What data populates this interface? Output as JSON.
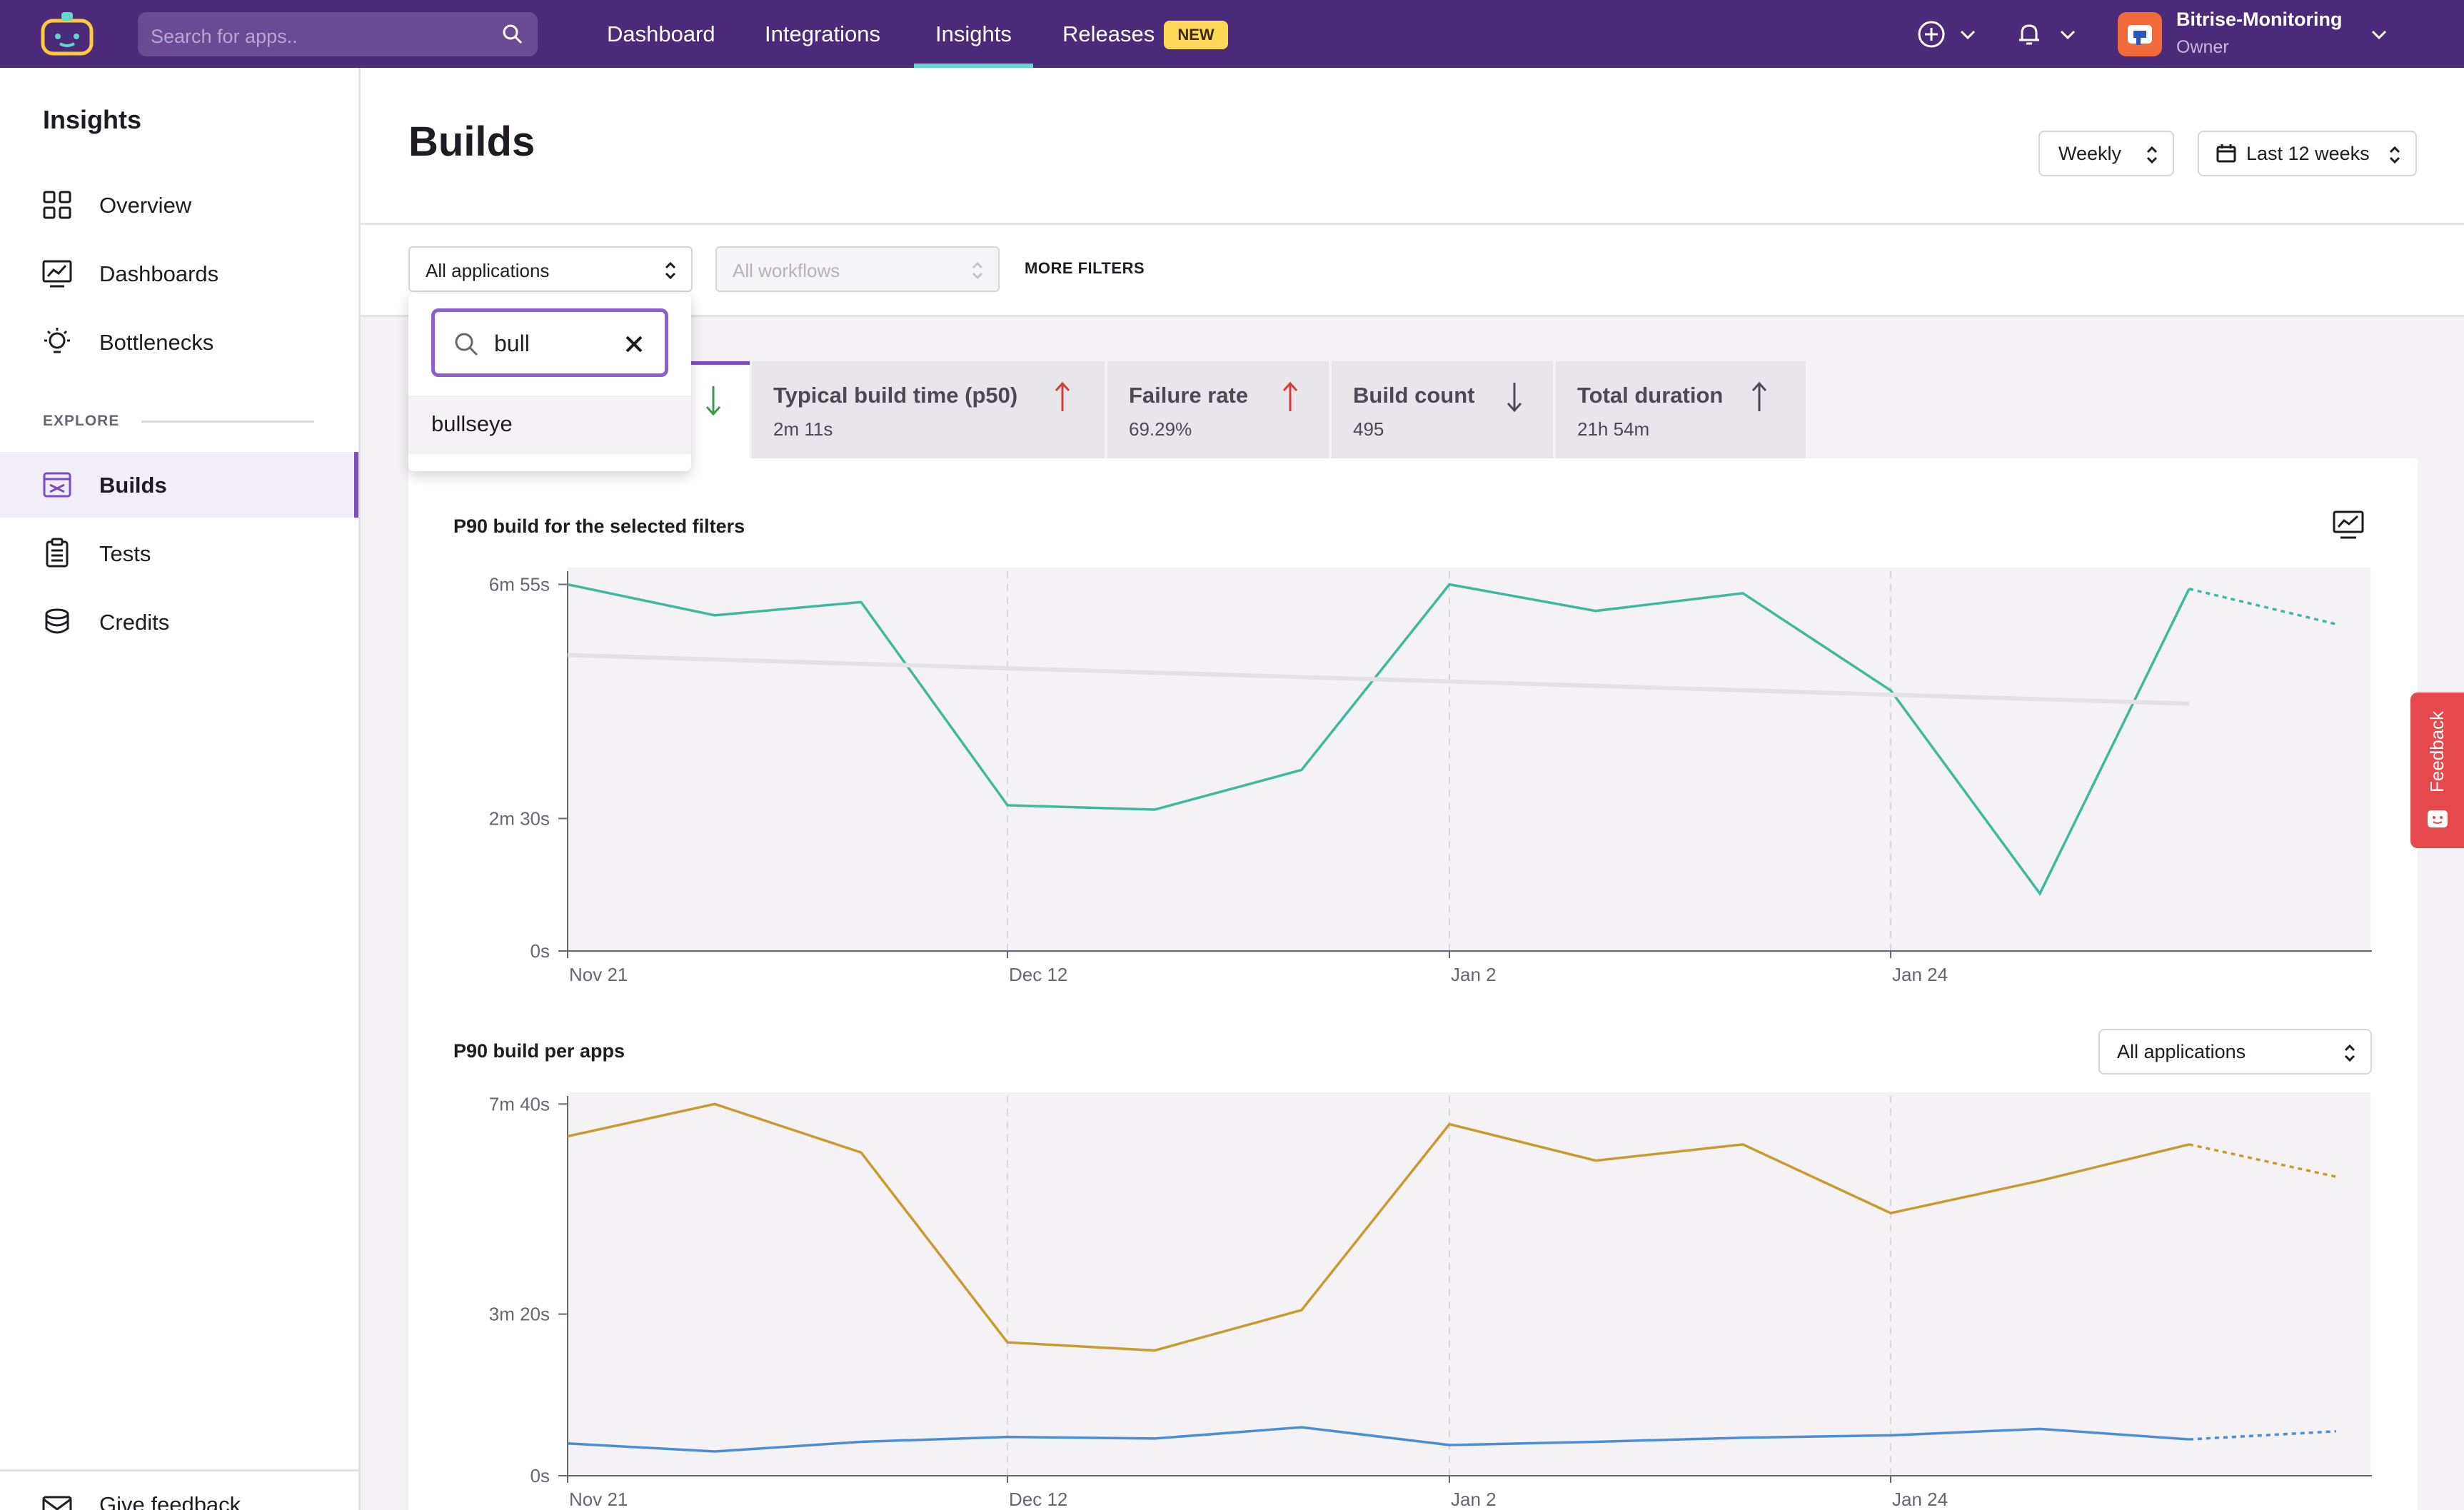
{
  "topbar": {
    "search_placeholder": "Search for apps..",
    "nav": [
      "Dashboard",
      "Integrations",
      "Insights",
      "Releases"
    ],
    "active_nav": "Insights",
    "new_badge": "NEW",
    "account_name": "Bitrise-Monitoring",
    "account_role": "Owner"
  },
  "sidebar": {
    "title": "Insights",
    "items": [
      "Overview",
      "Dashboards",
      "Bottlenecks"
    ],
    "explore_label": "EXPLORE",
    "explore_items": [
      "Builds",
      "Tests",
      "Credits"
    ],
    "active_item": "Builds",
    "feedback": "Give feedback"
  },
  "header": {
    "title": "Builds",
    "period": "Weekly",
    "range": "Last 12 weeks"
  },
  "filters": {
    "applications": "All applications",
    "workflows": "All workflows",
    "more": "MORE FILTERS"
  },
  "search_popover": {
    "query": "bull",
    "results": [
      "bullseye"
    ]
  },
  "metrics": [
    {
      "name": "Typical build time (p50)",
      "value": "2m 11s",
      "trend": "up"
    },
    {
      "name": "Failure rate",
      "value": "69.29%",
      "trend": "up"
    },
    {
      "name": "Build count",
      "value": "495",
      "trend": "down"
    },
    {
      "name": "Total duration",
      "value": "21h 54m",
      "trend": "up"
    }
  ],
  "colors": {
    "brand": "#4b2a7a",
    "accent": "#7b4fc3",
    "teal": "#3fb8a0",
    "gold": "#c99a2e",
    "blue": "#4a8fd6",
    "trend_up": "#d93a3a",
    "trend_down": "#3a9a4a"
  },
  "charts": {
    "main_title": "P90 build for the selected filters",
    "apps_title": "P90 build per apps",
    "apps_select": "All applications"
  },
  "chart_data": [
    {
      "type": "line",
      "title": "P90 build for the selected filters",
      "x": [
        0,
        1,
        2,
        3,
        4,
        5,
        6,
        7,
        8,
        9,
        10,
        11,
        12
      ],
      "x_ticks": [
        {
          "at": 0,
          "label": "Nov 21"
        },
        {
          "at": 3,
          "label": "Dec 12"
        },
        {
          "at": 6,
          "label": "Jan 2"
        },
        {
          "at": 9,
          "label": "Jan 24"
        }
      ],
      "y_ticks": [
        {
          "at": 0,
          "label": "0s"
        },
        {
          "at": 150,
          "label": "2m 30s"
        },
        {
          "at": 415,
          "label": "6m 55s"
        }
      ],
      "ylim": [
        0,
        430
      ],
      "series": [
        {
          "values": [
            415,
            380,
            395,
            165,
            160,
            205,
            415,
            385,
            405,
            295,
            65,
            410,
            370
          ],
          "color": "#3fb8a0",
          "dashed_from": 11
        },
        {
          "values": [
            335,
            null,
            null,
            null,
            null,
            null,
            null,
            null,
            null,
            null,
            null,
            280,
            null
          ],
          "color": "#e4e2e6",
          "trend": true
        }
      ]
    },
    {
      "type": "line",
      "title": "P90 build per apps",
      "x": [
        0,
        1,
        2,
        3,
        4,
        5,
        6,
        7,
        8,
        9,
        10,
        11,
        12
      ],
      "x_ticks": [
        {
          "at": 0,
          "label": "Nov 21"
        },
        {
          "at": 3,
          "label": "Dec 12"
        },
        {
          "at": 6,
          "label": "Jan 2"
        },
        {
          "at": 9,
          "label": "Jan 24"
        }
      ],
      "y_ticks": [
        {
          "at": 0,
          "label": "0s"
        },
        {
          "at": 200,
          "label": "3m 20s"
        },
        {
          "at": 460,
          "label": "7m 40s"
        }
      ],
      "ylim": [
        0,
        470
      ],
      "series": [
        {
          "values": [
            420,
            460,
            400,
            165,
            155,
            205,
            435,
            390,
            410,
            325,
            365,
            410,
            370
          ],
          "color": "#c99a2e",
          "dashed_from": 11
        },
        {
          "values": [
            40,
            30,
            42,
            48,
            46,
            60,
            38,
            42,
            47,
            50,
            58,
            45,
            55
          ],
          "color": "#4a8fd6",
          "dashed_from": 11
        }
      ]
    }
  ]
}
